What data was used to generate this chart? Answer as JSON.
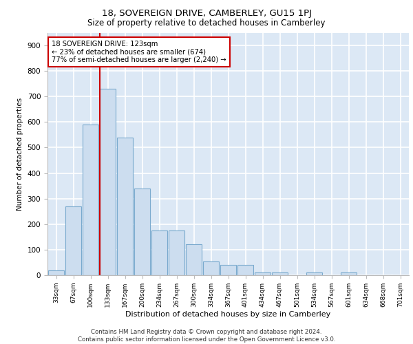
{
  "title": "18, SOVEREIGN DRIVE, CAMBERLEY, GU15 1PJ",
  "subtitle": "Size of property relative to detached houses in Camberley",
  "xlabel": "Distribution of detached houses by size in Camberley",
  "ylabel": "Number of detached properties",
  "bar_color": "#ccddef",
  "bar_edge_color": "#7aaace",
  "background_color": "#dce8f5",
  "grid_color": "#ffffff",
  "vline_color": "#cc0000",
  "annotation_text": "18 SOVEREIGN DRIVE: 123sqm\n← 23% of detached houses are smaller (674)\n77% of semi-detached houses are larger (2,240) →",
  "annotation_bg": "#ffffff",
  "annotation_edge": "#cc0000",
  "categories": [
    "33sqm",
    "67sqm",
    "100sqm",
    "133sqm",
    "167sqm",
    "200sqm",
    "234sqm",
    "267sqm",
    "300sqm",
    "334sqm",
    "367sqm",
    "401sqm",
    "434sqm",
    "467sqm",
    "501sqm",
    "534sqm",
    "567sqm",
    "601sqm",
    "634sqm",
    "668sqm",
    "701sqm"
  ],
  "values": [
    18,
    270,
    590,
    730,
    540,
    340,
    175,
    175,
    120,
    55,
    40,
    40,
    10,
    10,
    0,
    10,
    0,
    10,
    0,
    0,
    0
  ],
  "vline_bin_index": 3,
  "ylim": [
    0,
    950
  ],
  "yticks": [
    0,
    100,
    200,
    300,
    400,
    500,
    600,
    700,
    800,
    900
  ],
  "footer": "Contains HM Land Registry data © Crown copyright and database right 2024.\nContains public sector information licensed under the Open Government Licence v3.0."
}
